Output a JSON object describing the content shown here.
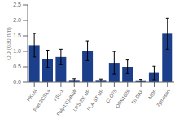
{
  "chart_data": {
    "type": "bar",
    "ylabel": "OD (630 nm)",
    "categories": [
      "HKLM",
      "Pam3CSK4",
      "FSL-1",
      "Poly(I:C)HMW",
      "LPS-EK UP",
      "FLA-ST UP",
      "CLO75",
      "ODN1826",
      "Tri-DAP",
      "MDP",
      "Zymosan"
    ],
    "values": [
      1.2,
      0.76,
      0.82,
      0.07,
      1.02,
      0.07,
      0.63,
      0.5,
      0.06,
      0.3,
      1.57
    ],
    "errors": [
      0.38,
      0.28,
      0.25,
      0.04,
      0.32,
      0.03,
      0.37,
      0.22,
      0.03,
      0.22,
      0.5
    ],
    "color": "#1c3f8c",
    "ylim": [
      0,
      2.5
    ],
    "yticks": [
      {
        "value": 0,
        "label": "0.0"
      },
      0.5,
      {
        "value": 1,
        "label": "1.0"
      },
      1.5,
      {
        "value": 2,
        "label": "2.0"
      },
      2.5
    ],
    "grid": false
  }
}
